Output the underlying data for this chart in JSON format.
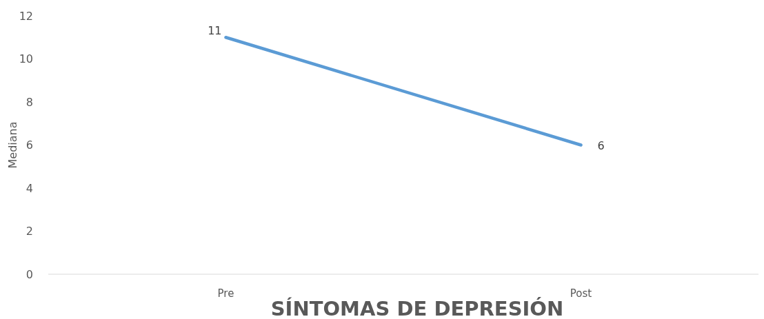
{
  "chart_data": {
    "type": "line",
    "xlabel": "SÍNTOMAS DE DEPRESIÓN",
    "ylabel": "Mediana",
    "categories": [
      "Pre",
      "Post"
    ],
    "series": [
      {
        "color": "#5b9bd5",
        "values": [
          11,
          6
        ]
      }
    ],
    "ylim": [
      0,
      12
    ],
    "yticks": [
      0,
      2,
      4,
      6,
      8,
      10,
      12
    ],
    "grid": false,
    "data_labels": true,
    "marker": "none",
    "line_style": "solid"
  }
}
